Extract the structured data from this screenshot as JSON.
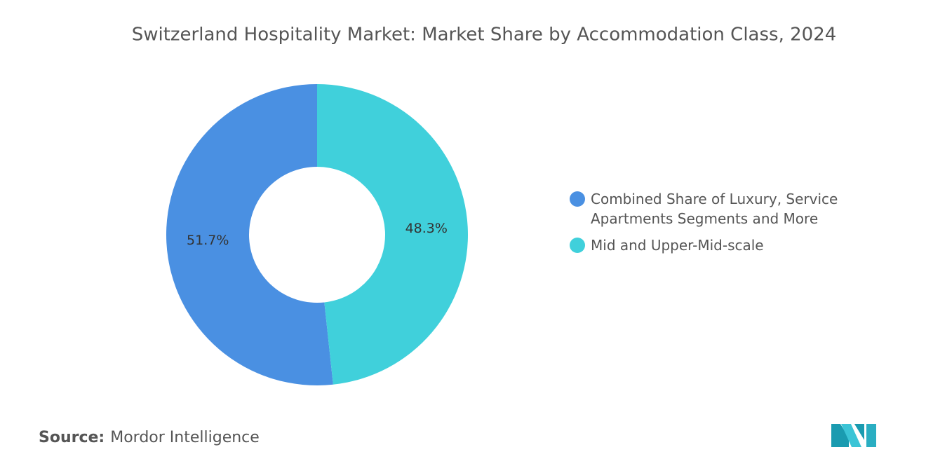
{
  "chart_data": {
    "type": "donut",
    "title": "Switzerland Hospitality Market: Market Share by Accommodation Class, 2024",
    "categories": [
      "Combined Share of Luxury, Service Apartments Segments and More",
      "Mid and Upper-Mid-scale"
    ],
    "values": [
      51.7,
      48.3
    ],
    "value_labels": [
      "51.7%",
      "48.3%"
    ],
    "colors": [
      "#4a90e2",
      "#40d0db"
    ],
    "legend": "right",
    "source_label": "Source:",
    "source": "Mordor Intelligence"
  }
}
